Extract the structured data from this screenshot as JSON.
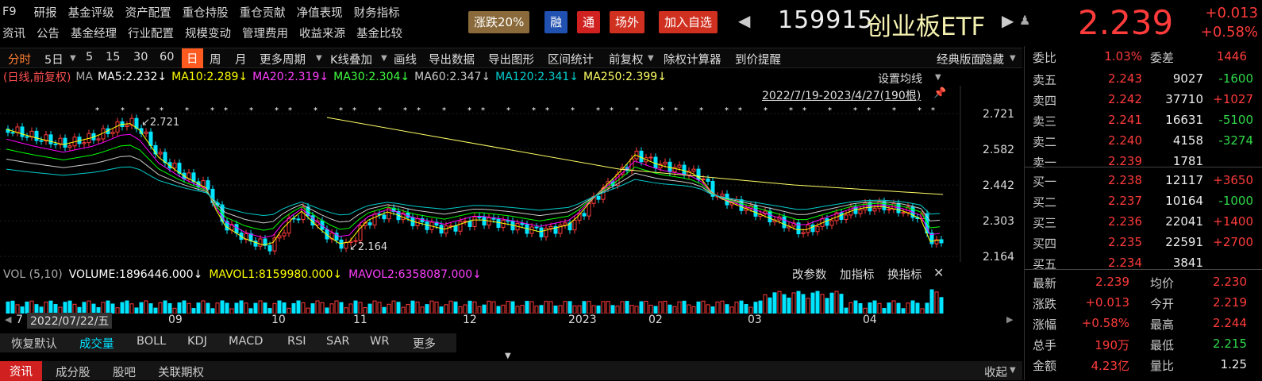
{
  "nav": {
    "row1": [
      "F9",
      "研报",
      "基金评级",
      "资产配置",
      "重仓持股",
      "重仓贡献",
      "净值表现",
      "财务指标"
    ],
    "row2": [
      "资讯",
      "公告",
      "基金经理",
      "行业配置",
      "规模变动",
      "管理费用",
      "收益来源",
      "基金比较"
    ]
  },
  "tags": {
    "limit": "涨跌20%",
    "margin": "融",
    "tong": "通",
    "onsite": "场外",
    "add_watch": "加入自选"
  },
  "security": {
    "code": "159915",
    "name": "创业板ETF",
    "price": "2.239",
    "change": "+0.013",
    "change_pct": "+0.58%"
  },
  "toolbar": [
    "分时",
    "5日",
    "5",
    "15",
    "30",
    "60",
    "日",
    "周",
    "月",
    "更多周期",
    "K线叠加",
    "画线",
    "导出数据",
    "导出图形",
    "区间统计",
    "前复权",
    "除权计算器",
    "到价提醒"
  ],
  "toolbar_right": [
    "经典版面",
    "隐藏"
  ],
  "ma": {
    "prefix": "(日线,前复权)",
    "ma_label": "MA",
    "ma5": "MA5:2.232↓",
    "ma10": "MA10:2.289↓",
    "ma20": "MA20:2.319↓",
    "ma30": "MA30:2.304↓",
    "ma60": "MA60:2.347↓",
    "ma120": "MA120:2.341↓",
    "ma250": "MA250:2.399↓"
  },
  "chart_ctrl": {
    "setting": "设置均线",
    "range": "2022/7/19-2023/4/27(190根)"
  },
  "price_axis": [
    "2.721",
    "2.582",
    "2.442",
    "2.303",
    "2.164"
  ],
  "high_label": "2.721",
  "low_label": "2.164",
  "vol": {
    "label": "VOL (5,10)",
    "volume": "VOLUME:1896446.000↓",
    "mavol1": "MAVOL1:8159980.000↓",
    "mavol2": "MAVOL2:6358087.000↓"
  },
  "vol_ctrl": [
    "改参数",
    "加指标",
    "换指标"
  ],
  "xaxis": {
    "left": "7",
    "cursor_date": "2022/07/22/五",
    "labels": [
      "09",
      "10",
      "11",
      "12",
      "2023",
      "02",
      "03",
      "04"
    ]
  },
  "indicator_tabs": [
    "恢复默认",
    "成交量",
    "BOLL",
    "KDJ",
    "MACD",
    "RSI",
    "SAR",
    "WR",
    "更多"
  ],
  "bottom_tabs": [
    "资讯",
    "成分股",
    "股吧",
    "关联期权"
  ],
  "collapse": "收起",
  "orderbook": {
    "weibi": {
      "label": "委比",
      "value": "1.03%",
      "label2": "委差",
      "value2": "1446"
    },
    "asks": [
      {
        "label": "卖五",
        "price": "2.243",
        "vol": "9027",
        "chg": "-1600"
      },
      {
        "label": "卖四",
        "price": "2.242",
        "vol": "37710",
        "chg": "+1027"
      },
      {
        "label": "卖三",
        "price": "2.241",
        "vol": "16631",
        "chg": "-5100"
      },
      {
        "label": "卖二",
        "price": "2.240",
        "vol": "4158",
        "chg": "-3274"
      },
      {
        "label": "卖一",
        "price": "2.239",
        "vol": "1781",
        "chg": ""
      }
    ],
    "bids": [
      {
        "label": "买一",
        "price": "2.238",
        "vol": "12117",
        "chg": "+3650"
      },
      {
        "label": "买二",
        "price": "2.237",
        "vol": "10164",
        "chg": "-1000"
      },
      {
        "label": "买三",
        "price": "2.236",
        "vol": "22041",
        "chg": "+1400"
      },
      {
        "label": "买四",
        "price": "2.235",
        "vol": "22591",
        "chg": "+2700"
      },
      {
        "label": "买五",
        "price": "2.234",
        "vol": "3841",
        "chg": ""
      }
    ]
  },
  "stats": [
    {
      "l1": "最新",
      "v1": "2.239",
      "l2": "均价",
      "v2": "2.230"
    },
    {
      "l1": "涨跌",
      "v1": "+0.013",
      "l2": "今开",
      "v2": "2.219"
    },
    {
      "l1": "涨幅",
      "v1": "+0.58%",
      "l2": "最高",
      "v2": "2.244"
    },
    {
      "l1": "总手",
      "v1": "190万",
      "l2": "最低",
      "v2": "2.215"
    },
    {
      "l1": "金额",
      "v1": "4.23亿",
      "l2": "量比",
      "v2": "1.25"
    }
  ],
  "colors": {
    "up": "#ff3b3b",
    "down": "#00e5ff",
    "ma5": "#ffffff",
    "ma10": "#ffff00",
    "ma20": "#ff00ff",
    "ma30": "#00ff00",
    "ma60": "#cccccc",
    "ma120": "#00cccc",
    "ma250": "#ffff66"
  }
}
